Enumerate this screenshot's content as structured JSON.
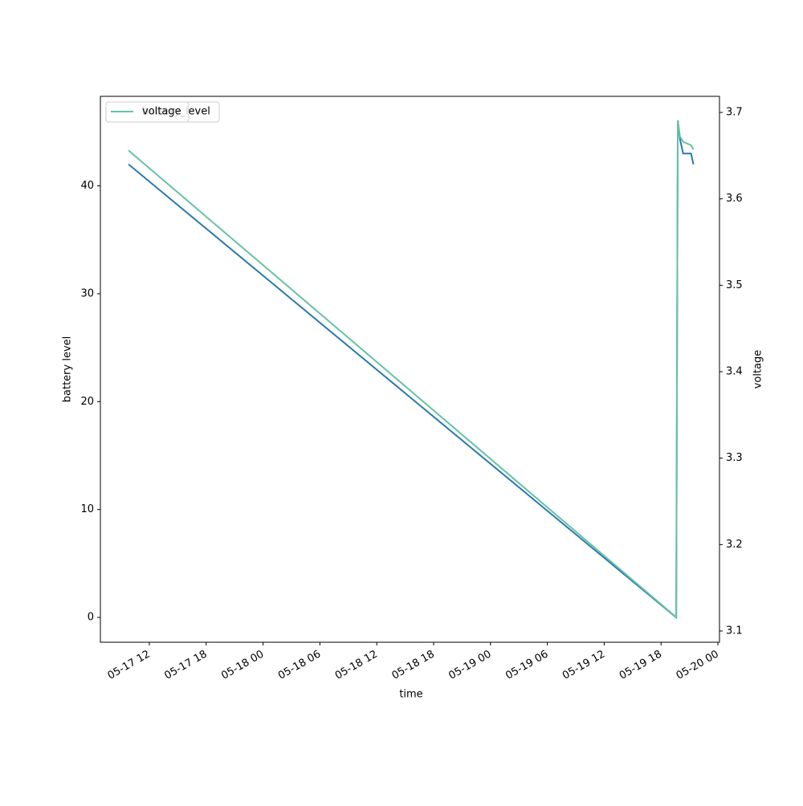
{
  "chart_data": {
    "type": "line",
    "x_label": "time",
    "y_label": "battery level",
    "y2_label": "voltage",
    "x": [
      "05-17 09:48",
      "05-19 19:36",
      "05-19 19:46",
      "05-19 20:00",
      "05-19 20:20",
      "05-19 21:10",
      "05-19 21:25"
    ],
    "series": [
      {
        "name": "battery_level",
        "color": "#2a7ab0",
        "values": [
          42,
          0,
          46,
          44.3,
          43,
          43,
          42
        ]
      },
      {
        "name": "voltage",
        "color": "#66c2a5",
        "axis": "y2",
        "values": [
          3.656,
          3.116,
          3.691,
          3.672,
          3.666,
          3.662,
          3.657
        ]
      }
    ],
    "xlim": [
      "05-17 06:50",
      "05-20 00:10"
    ],
    "xticks": [
      "05-17 12",
      "05-17 18",
      "05-18 00",
      "05-18 06",
      "05-18 12",
      "05-18 18",
      "05-19 00",
      "05-19 06",
      "05-19 12",
      "05-19 18",
      "05-20 00"
    ],
    "ylim": [
      -2.3,
      48.3
    ],
    "yticks": [
      0,
      10,
      20,
      30,
      40
    ],
    "y2lim": [
      3.087,
      3.7186
    ],
    "y2ticks": [
      3.1,
      3.2,
      3.3,
      3.4,
      3.5,
      3.6,
      3.7
    ],
    "legend": "upper left"
  }
}
